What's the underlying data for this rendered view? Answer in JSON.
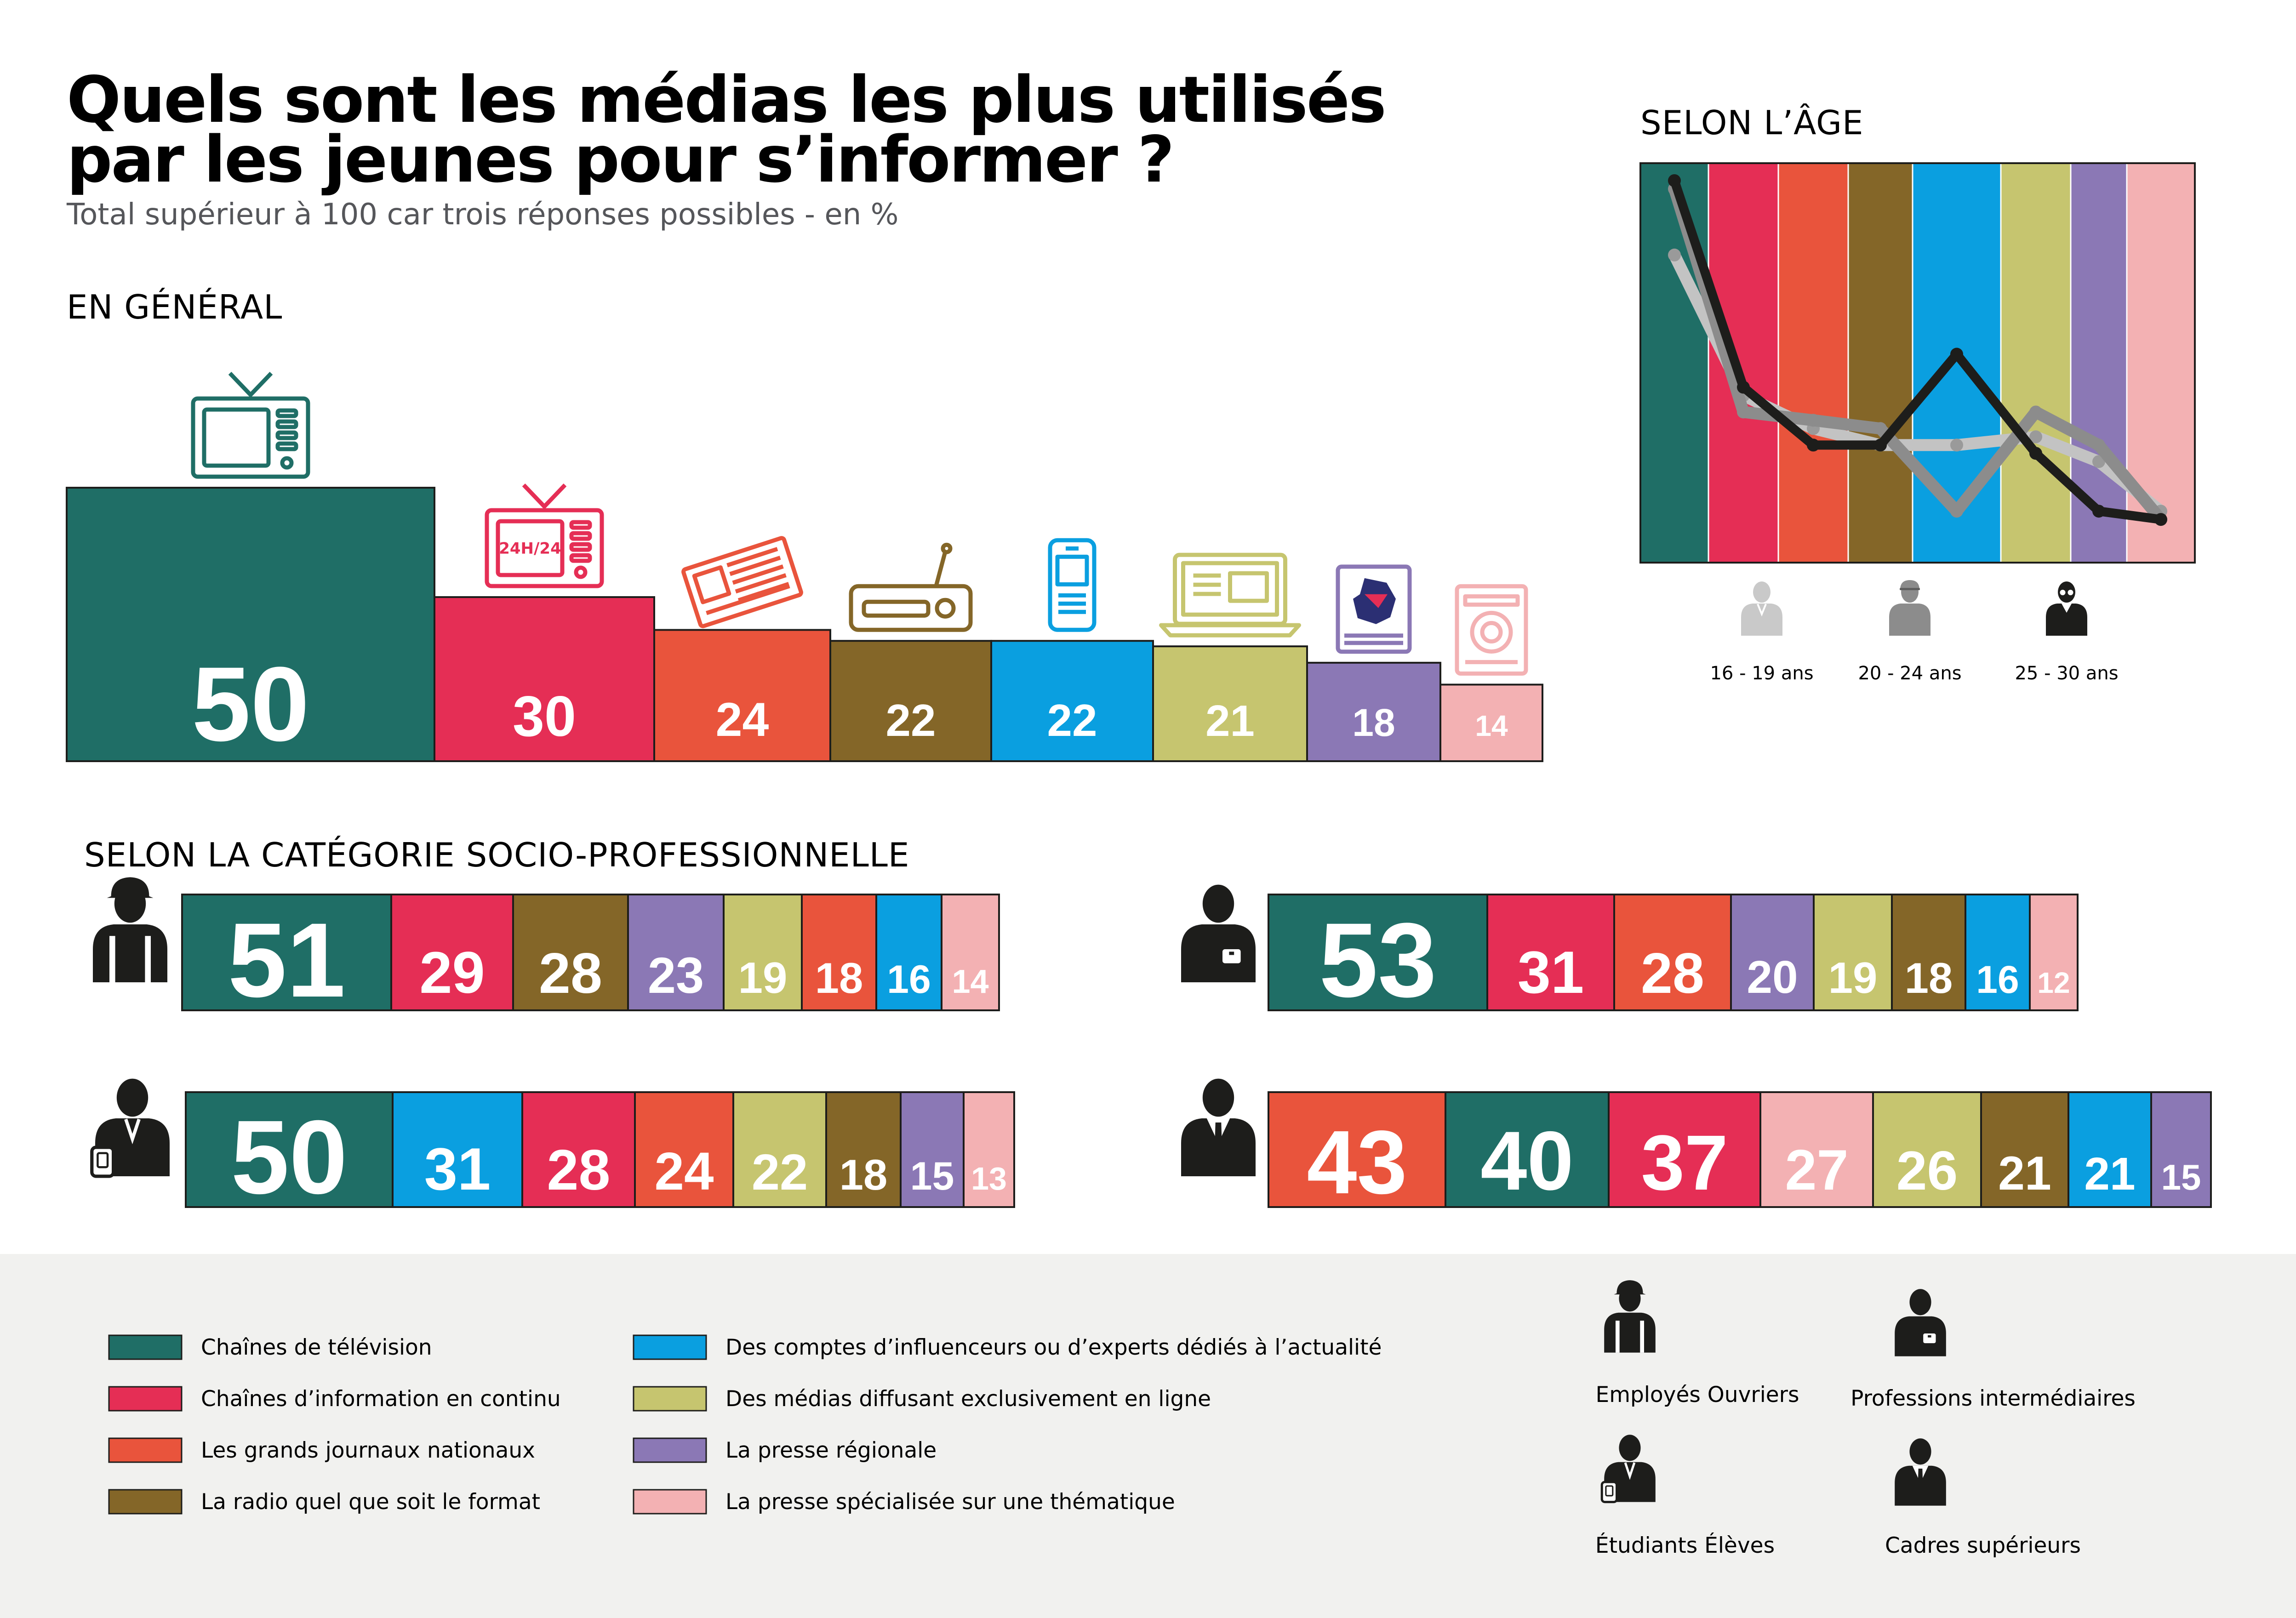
{
  "title_line1": "Quels sont les médias les plus utilisés",
  "title_line2": "par les jeunes pour s’informer ?",
  "subtitle": "Total supérieur à 100 car trois réponses possibles - en %",
  "colors": {
    "tv": "#1f6e66",
    "continu": "#e52e55",
    "journaux": "#e9543c",
    "radio": "#846628",
    "influenceurs": "#0a9fe0",
    "en_ligne": "#c6c56f",
    "regionale": "#8b78b5",
    "specialisee": "#f3b1b3"
  },
  "icon_names": [
    "tv-icon",
    "tv-24h-icon",
    "newspaper-icon",
    "radio-icon",
    "smartphone-icon",
    "laptop-icon",
    "regional-map-icon",
    "magazine-icon"
  ],
  "tv24_label": "24H/24",
  "chart_data": [
    {
      "id": "general",
      "type": "bar",
      "title": "EN GÉNÉRAL",
      "categories": [
        "Chaînes de télévision",
        "Chaînes d’information en continu",
        "Les grands journaux nationaux",
        "La radio quel que soit le format",
        "Des comptes d’influenceurs ou d’experts dédiés à l’actualité",
        "Des médias diffusant exclusivement en ligne",
        "La presse régionale",
        "La presse spécialisée sur une thématique"
      ],
      "keys": [
        "tv",
        "continu",
        "journaux",
        "radio",
        "influenceurs",
        "en_ligne",
        "regionale",
        "specialisee"
      ],
      "values": [
        50,
        30,
        24,
        22,
        22,
        21,
        18,
        14
      ]
    },
    {
      "id": "age",
      "type": "line",
      "title": "SELON L’ÂGE",
      "categories": [
        "Chaînes de télévision",
        "Chaînes d’information en continu",
        "Les grands journaux nationaux",
        "La radio quel que soit le format",
        "Des comptes d’influenceurs ou d’experts dédiés à l’actualité",
        "Des médias diffusant exclusivement en ligne",
        "La presse régionale",
        "La presse spécialisée sur une thématique"
      ],
      "keys": [
        "tv",
        "continu",
        "journaux",
        "radio",
        "influenceurs",
        "en_ligne",
        "regionale",
        "specialisee"
      ],
      "ylim": [
        10,
        55
      ],
      "series": [
        {
          "name": "16 - 19 ans",
          "color": "#c3c3c3",
          "values": [
            45,
            28,
            24,
            22,
            22,
            23,
            20,
            14
          ]
        },
        {
          "name": "20 - 24 ans",
          "color": "#8c8c8c",
          "values": [
            53,
            26,
            25,
            24,
            14,
            26,
            22,
            13
          ]
        },
        {
          "name": "25 - 30 ans",
          "color": "#1d1d1b",
          "values": [
            54,
            29,
            22,
            22,
            33,
            21,
            14,
            13
          ]
        }
      ]
    },
    {
      "id": "csp",
      "type": "bar",
      "title": "SELON LA CATÉGORIE SOCIO-PROFESSIONNELLE",
      "groups": [
        {
          "name": "Employés Ouvriers",
          "keys": [
            "tv",
            "continu",
            "radio",
            "regionale",
            "en_ligne",
            "journaux",
            "influenceurs",
            "specialisee"
          ],
          "values": [
            51,
            29,
            28,
            23,
            19,
            18,
            16,
            14
          ]
        },
        {
          "name": "Professions intermédiaires",
          "keys": [
            "tv",
            "continu",
            "journaux",
            "regionale",
            "en_ligne",
            "radio",
            "influenceurs",
            "specialisee"
          ],
          "values": [
            53,
            31,
            28,
            20,
            19,
            18,
            16,
            12
          ]
        },
        {
          "name": "Étudiants Élèves",
          "keys": [
            "tv",
            "influenceurs",
            "continu",
            "journaux",
            "en_ligne",
            "radio",
            "regionale",
            "specialisee"
          ],
          "values": [
            50,
            31,
            28,
            24,
            22,
            18,
            15,
            13
          ]
        },
        {
          "name": "Cadres supérieurs",
          "keys": [
            "journaux",
            "tv",
            "continu",
            "specialisee",
            "en_ligne",
            "radio",
            "influenceurs",
            "regionale"
          ],
          "values": [
            43,
            40,
            37,
            27,
            26,
            21,
            21,
            15
          ]
        }
      ]
    }
  ],
  "legend": [
    {
      "key": "tv",
      "label": "Chaînes de télévision"
    },
    {
      "key": "continu",
      "label": "Chaînes d’information en continu"
    },
    {
      "key": "journaux",
      "label": "Les grands journaux nationaux"
    },
    {
      "key": "radio",
      "label": "La radio quel que soit le format"
    },
    {
      "key": "influenceurs",
      "label": "Des comptes d’influenceurs ou d’experts dédiés à l’actualité"
    },
    {
      "key": "en_ligne",
      "label": "Des médias diffusant exclusivement en ligne"
    },
    {
      "key": "regionale",
      "label": "La presse régionale"
    },
    {
      "key": "specialisee",
      "label": "La presse spécialisée sur une thématique"
    }
  ],
  "person_legend": [
    "Employés Ouvriers",
    "Professions intermédiaires",
    "Étudiants Élèves",
    "Cadres supérieurs"
  ]
}
